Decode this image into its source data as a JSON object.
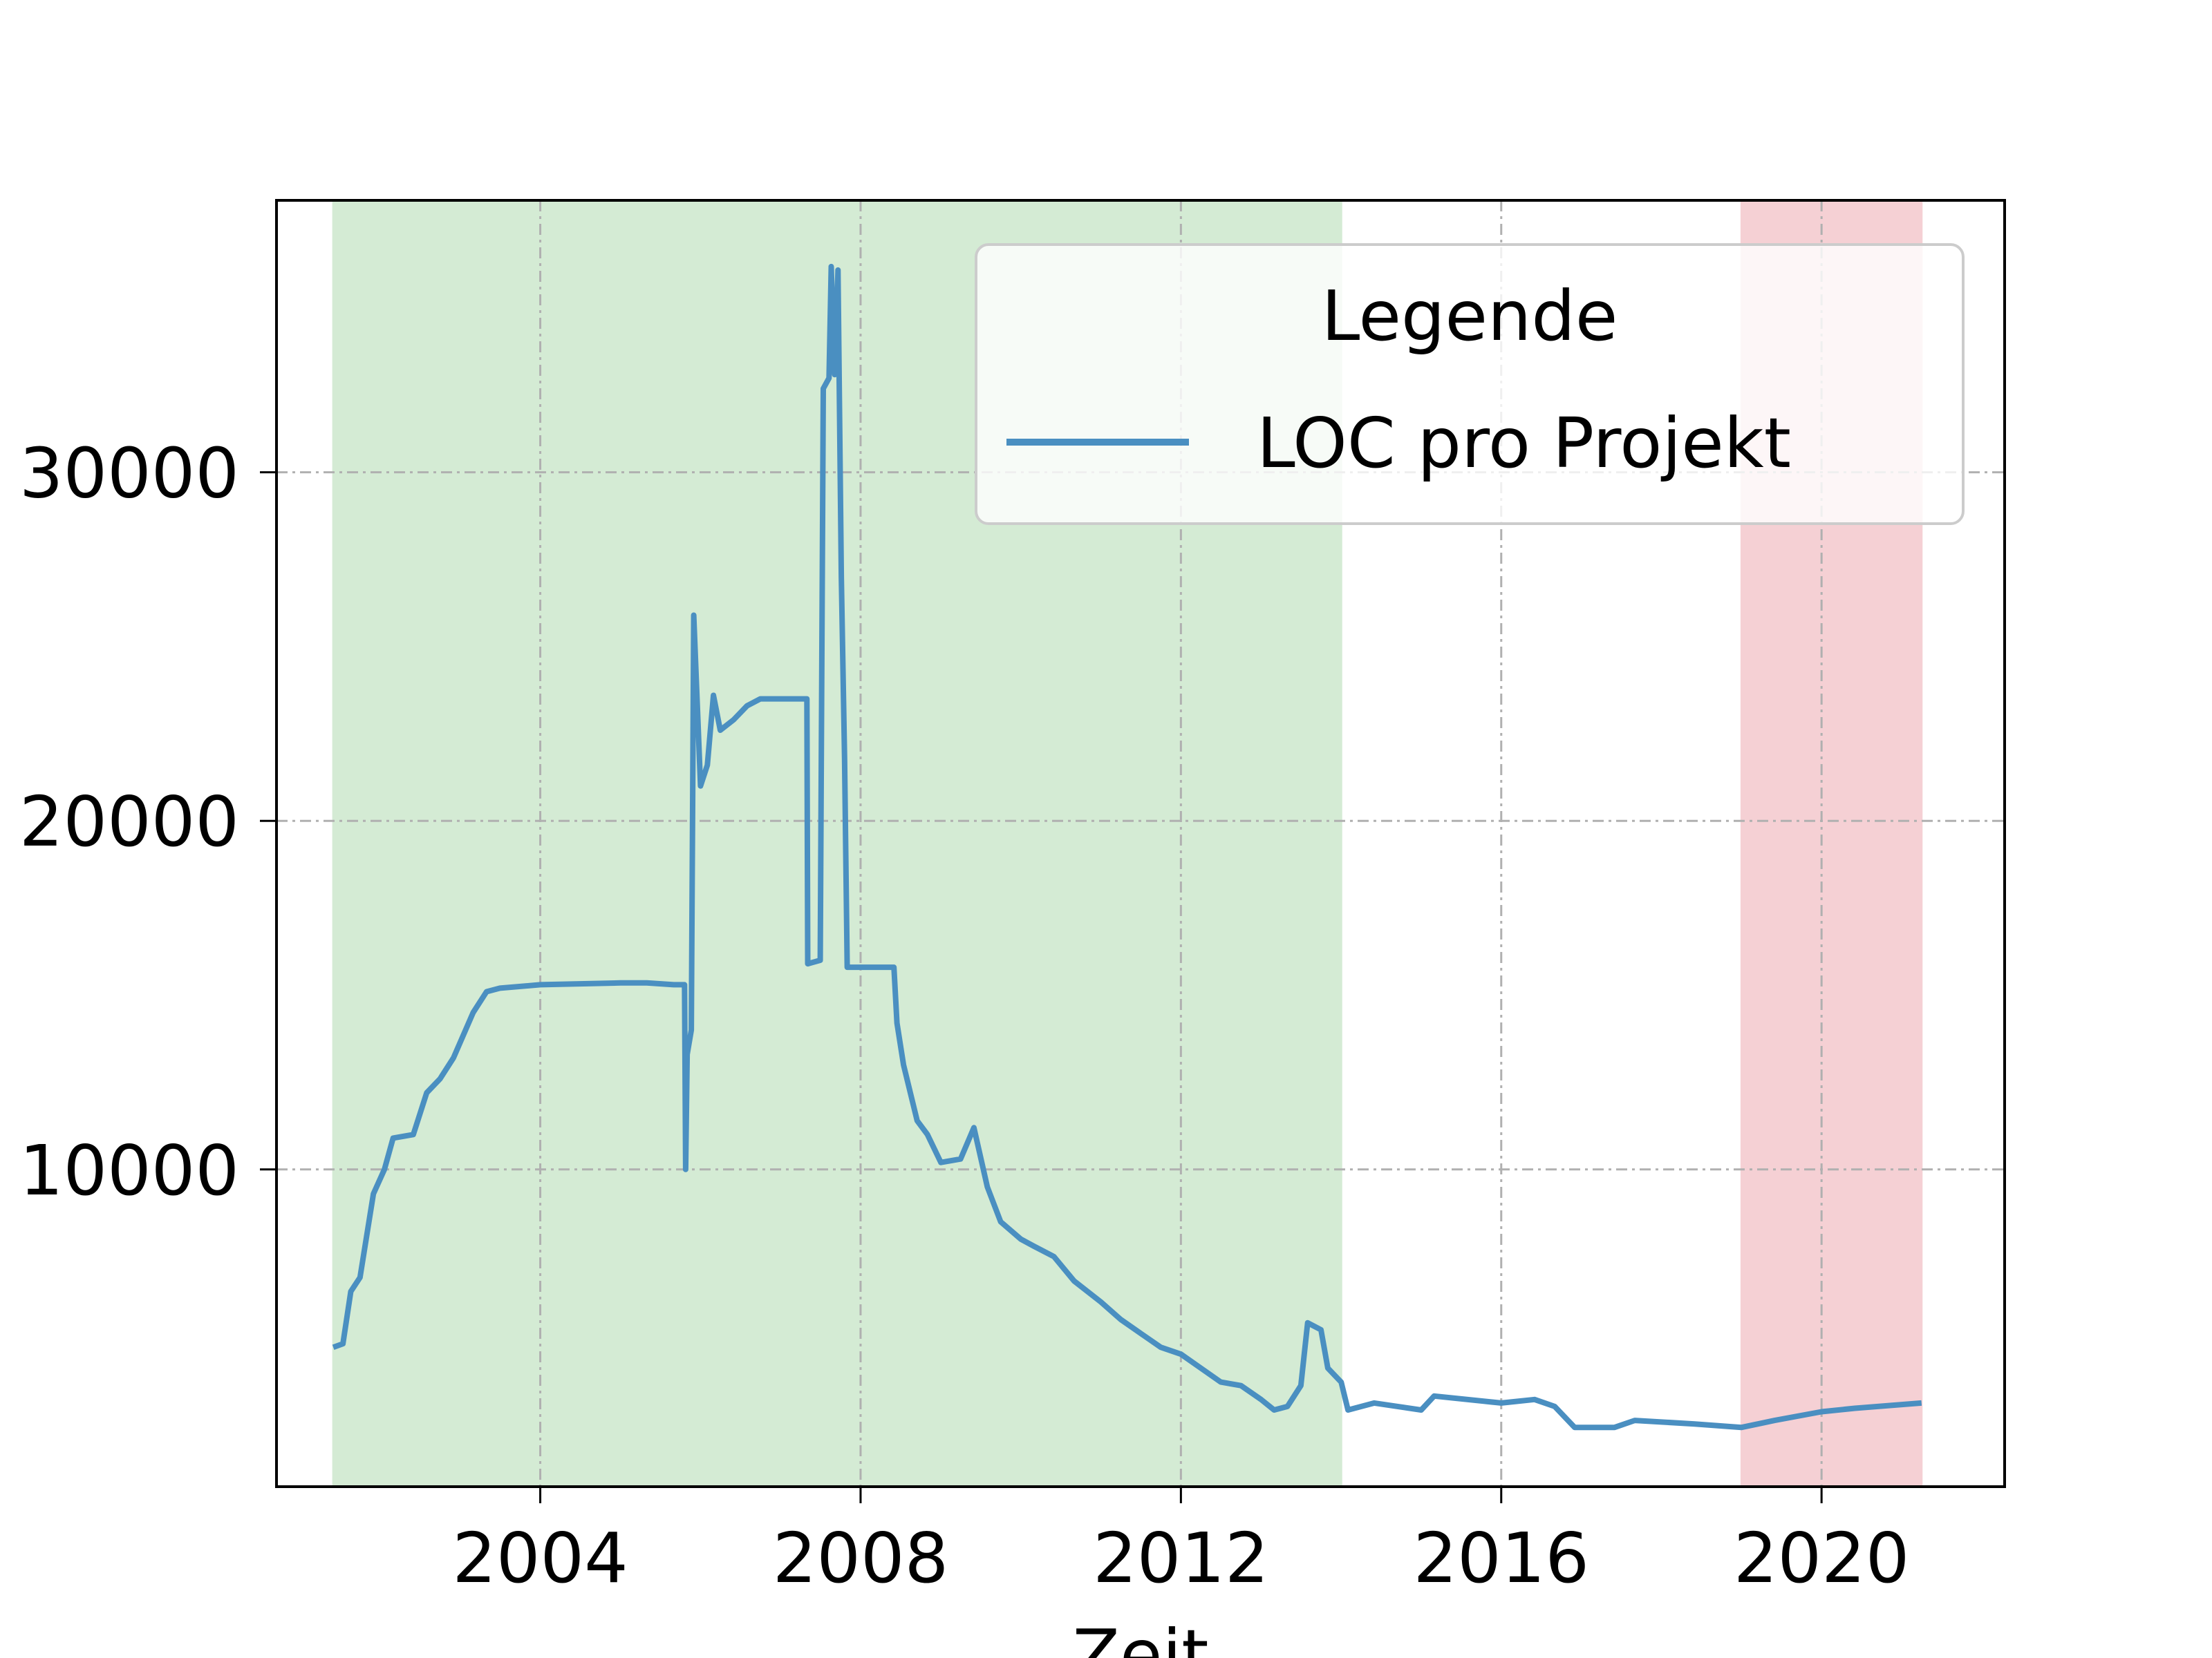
{
  "chart_data": {
    "type": "line",
    "title": "",
    "xlabel": "Zeit",
    "ylabel": "",
    "x_type": "date",
    "xlim": [
      "2000-09-15",
      "2022-04-15"
    ],
    "ylim": [
      900,
      37800
    ],
    "xticks": [
      "2004-01-01",
      "2008-01-01",
      "2012-01-01",
      "2016-01-01",
      "2020-01-01"
    ],
    "xtick_labels": [
      "2004",
      "2008",
      "2012",
      "2016",
      "2020"
    ],
    "yticks": [
      10000,
      20000,
      30000
    ],
    "ytick_labels": [
      "10000",
      "20000",
      "30000"
    ],
    "grid": true,
    "legend": {
      "title": "Legende",
      "position": "top-right",
      "entries": [
        "LOC pro Projekt"
      ]
    },
    "bands": [
      {
        "from": "2001-06-01",
        "to": "2014-01-01",
        "color": "#d4ebd4"
      },
      {
        "from": "2019-01-01",
        "to": "2021-04-01",
        "color": "#f5d0d4"
      }
    ],
    "series": [
      {
        "name": "LOC pro Projekt",
        "color": "#4a8fc1",
        "points": [
          [
            "2001-06-01",
            4900
          ],
          [
            "2001-07-15",
            5000
          ],
          [
            "2001-08-20",
            6500
          ],
          [
            "2001-10-01",
            6900
          ],
          [
            "2001-12-01",
            9300
          ],
          [
            "2002-01-20",
            10000
          ],
          [
            "2002-03-01",
            10900
          ],
          [
            "2002-06-01",
            11000
          ],
          [
            "2002-08-01",
            12200
          ],
          [
            "2002-10-01",
            12600
          ],
          [
            "2002-12-01",
            13200
          ],
          [
            "2003-03-01",
            14500
          ],
          [
            "2003-05-01",
            15100
          ],
          [
            "2003-07-01",
            15200
          ],
          [
            "2004-01-01",
            15300
          ],
          [
            "2005-01-01",
            15350
          ],
          [
            "2005-05-01",
            15350
          ],
          [
            "2005-09-01",
            15300
          ],
          [
            "2005-10-20",
            15300
          ],
          [
            "2005-10-25",
            10000
          ],
          [
            "2005-11-01",
            13300
          ],
          [
            "2005-11-20",
            14000
          ],
          [
            "2005-12-01",
            25900
          ],
          [
            "2006-01-01",
            21000
          ],
          [
            "2006-02-01",
            21600
          ],
          [
            "2006-03-01",
            23600
          ],
          [
            "2006-04-01",
            22600
          ],
          [
            "2006-06-01",
            22900
          ],
          [
            "2006-08-01",
            23300
          ],
          [
            "2006-10-01",
            23500
          ],
          [
            "2007-01-01",
            23500
          ],
          [
            "2007-05-01",
            23500
          ],
          [
            "2007-05-05",
            15900
          ],
          [
            "2007-07-01",
            16000
          ],
          [
            "2007-07-15",
            32400
          ],
          [
            "2007-08-10",
            32700
          ],
          [
            "2007-08-20",
            35900
          ],
          [
            "2007-09-05",
            32800
          ],
          [
            "2007-09-20",
            35800
          ],
          [
            "2007-10-05",
            27000
          ],
          [
            "2007-10-20",
            21800
          ],
          [
            "2007-11-01",
            15800
          ],
          [
            "2008-06-01",
            15800
          ],
          [
            "2008-06-15",
            14200
          ],
          [
            "2008-07-15",
            13000
          ],
          [
            "2008-09-15",
            11400
          ],
          [
            "2008-11-01",
            11000
          ],
          [
            "2009-01-01",
            10200
          ],
          [
            "2009-04-01",
            10300
          ],
          [
            "2009-06-01",
            11200
          ],
          [
            "2009-08-01",
            9500
          ],
          [
            "2009-10-01",
            8500
          ],
          [
            "2010-01-01",
            8000
          ],
          [
            "2010-03-01",
            7800
          ],
          [
            "2010-06-01",
            7500
          ],
          [
            "2010-09-01",
            6800
          ],
          [
            "2011-01-01",
            6200
          ],
          [
            "2011-04-01",
            5700
          ],
          [
            "2011-07-01",
            5300
          ],
          [
            "2011-10-01",
            4900
          ],
          [
            "2012-01-01",
            4700
          ],
          [
            "2012-04-01",
            4300
          ],
          [
            "2012-07-01",
            3900
          ],
          [
            "2012-10-01",
            3800
          ],
          [
            "2013-01-01",
            3400
          ],
          [
            "2013-03-01",
            3100
          ],
          [
            "2013-05-01",
            3200
          ],
          [
            "2013-07-01",
            3800
          ],
          [
            "2013-08-01",
            5600
          ],
          [
            "2013-10-01",
            5400
          ],
          [
            "2013-11-01",
            4300
          ],
          [
            "2014-01-01",
            3900
          ],
          [
            "2014-02-01",
            3100
          ],
          [
            "2014-06-01",
            3300
          ],
          [
            "2015-01-01",
            3100
          ],
          [
            "2015-03-01",
            3500
          ],
          [
            "2016-01-01",
            3300
          ],
          [
            "2016-06-01",
            3400
          ],
          [
            "2016-09-01",
            3200
          ],
          [
            "2016-12-01",
            2600
          ],
          [
            "2017-06-01",
            2600
          ],
          [
            "2017-09-01",
            2800
          ],
          [
            "2018-06-01",
            2700
          ],
          [
            "2019-01-01",
            2600
          ],
          [
            "2019-06-01",
            2800
          ],
          [
            "2020-01-01",
            3050
          ],
          [
            "2020-06-01",
            3150
          ],
          [
            "2021-04-01",
            3300
          ]
        ]
      }
    ]
  }
}
